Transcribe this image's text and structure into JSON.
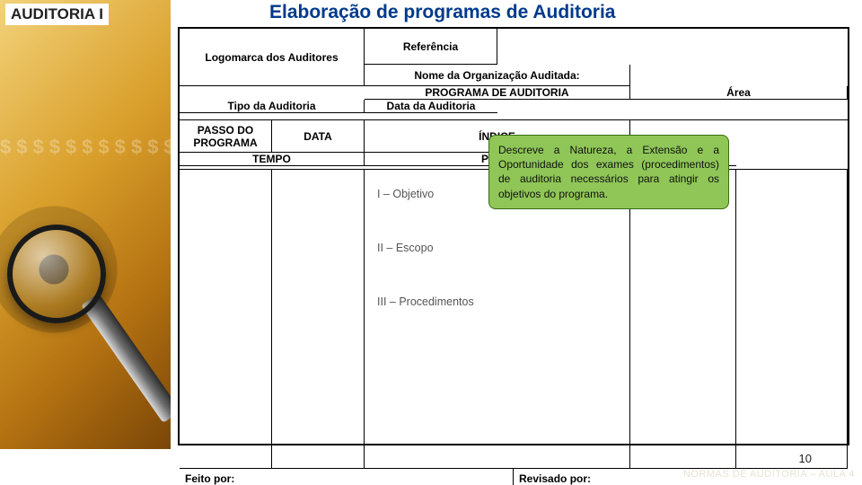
{
  "course_label": "AUDITORIA I",
  "title": {
    "text": "Elaboração de programas de Auditoria",
    "color": "#003a8c"
  },
  "colors": {
    "callout_bg": "#8fc657",
    "callout_border": "#3a6b12",
    "slide_bg": "#ffffff",
    "border": "#000000",
    "footer_note": "#e7e3d4"
  },
  "header": {
    "logo": "Logomarca dos Auditores",
    "nome_org": "Nome da Organização Auditada:",
    "referencia": "Referência",
    "programa": "PROGRAMA DE AUDITORIA",
    "area": "Área",
    "tipo": "Tipo da Auditoria",
    "data_aud": "Data da Auditoria"
  },
  "columns": {
    "tempo": "TEMPO",
    "prev": "PREV.",
    "real": "REAL",
    "passo": "PASSO DO PROGRAMA",
    "data": "DATA",
    "indice": "ÍNDICE"
  },
  "steps": [
    "I – Objetivo",
    "II – Escopo",
    "III – Procedimentos"
  ],
  "callout": "Descreve a Natureza, a Extensão e a Oportunidade dos exames (procedimentos) de auditoria necessários para atingir os objetivos do programa.",
  "footer": {
    "feito": "Feito por:",
    "revisado": "Revisado por:"
  },
  "page_number": "10",
  "footer_note": "NORMAS DE AUDITORIA – AULA 4",
  "dollar_fill": "$$$$$$$$$$$$$$$$$$$$$$$$$$$$$$$$$$$$$$$$$$$$$$$$$$$$$$$$$$$$$$$$$$$$$$$$$$$$$$$$$$$$$$$$$$$$$$$$$$$$$$$$$$$$$$$$$$$$$$$$$$$$$$$$$$$$$$$$$$$$$$$$"
}
